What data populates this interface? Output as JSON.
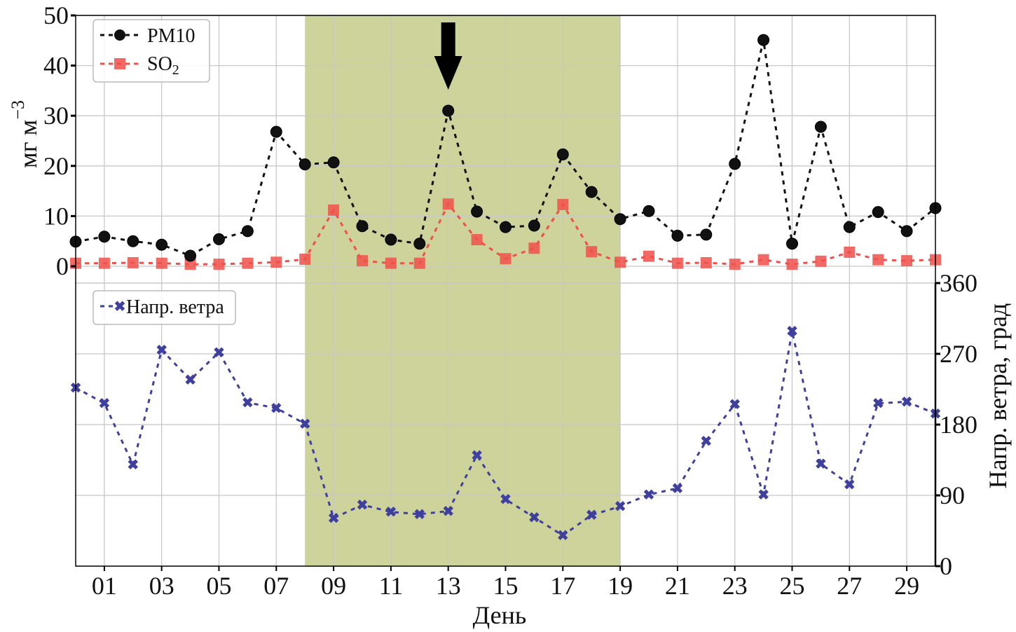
{
  "chart_data": {
    "type": "line",
    "xlabel": "День",
    "x": [
      0,
      1,
      2,
      3,
      4,
      5,
      6,
      7,
      8,
      9,
      10,
      11,
      12,
      13,
      14,
      15,
      16,
      17,
      18,
      19,
      20,
      21,
      22,
      23,
      24,
      25,
      26,
      27,
      28,
      29,
      30
    ],
    "xlim": [
      0,
      30
    ],
    "xticks": [
      "01",
      "03",
      "05",
      "07",
      "09",
      "11",
      "13",
      "15",
      "17",
      "19",
      "21",
      "23",
      "25",
      "27",
      "29"
    ],
    "xtick_values": [
      1,
      3,
      5,
      7,
      9,
      11,
      13,
      15,
      17,
      19,
      21,
      23,
      25,
      27,
      29
    ],
    "grid": true,
    "highlight_span": {
      "from": 8,
      "to": 19,
      "color": "#cdd39a"
    },
    "arrow_at": {
      "x": 13,
      "color": "#000000"
    },
    "top_panel": {
      "ylabel": "мг м",
      "ylabel_sup": "−3",
      "ylim": [
        0,
        50
      ],
      "yticks": [
        "0",
        "10",
        "20",
        "30",
        "40",
        "50"
      ],
      "ytick_values": [
        0,
        10,
        20,
        30,
        40,
        50
      ],
      "legend_placement": "upper-left",
      "series": [
        {
          "name": "PM10",
          "color": "#111111",
          "marker": "circle",
          "linestyle": "dotted",
          "values": [
            4.9,
            5.9,
            5.0,
            4.3,
            2.1,
            5.4,
            7.0,
            26.8,
            20.3,
            20.7,
            8.0,
            5.3,
            4.5,
            31.0,
            10.9,
            7.8,
            8.1,
            22.3,
            14.8,
            9.4,
            11.0,
            6.1,
            6.3,
            20.4,
            45.1,
            4.5,
            27.8,
            7.8,
            10.8,
            7.0,
            11.6
          ]
        },
        {
          "name": "SO",
          "name_sub": "2",
          "color": "#f0504a",
          "marker": "square",
          "linestyle": "dotted",
          "values": [
            0.6,
            0.6,
            0.7,
            0.6,
            0.4,
            0.4,
            0.6,
            0.8,
            1.4,
            11.2,
            1.1,
            0.6,
            0.6,
            12.4,
            5.3,
            1.5,
            3.6,
            12.3,
            2.9,
            0.8,
            2.0,
            0.6,
            0.7,
            0.4,
            1.3,
            0.4,
            1.0,
            2.8,
            1.3,
            1.1,
            1.3
          ]
        }
      ]
    },
    "bottom_panel": {
      "ylabel": "Напр. ветра, град",
      "yaxis_side": "right",
      "ylim": [
        0,
        360
      ],
      "yticks": [
        "0",
        "90",
        "180",
        "270",
        "360"
      ],
      "ytick_values": [
        0,
        90,
        180,
        270,
        360
      ],
      "legend_placement": "upper-left",
      "series": [
        {
          "name": "Напр. ветра",
          "color": "#3f3f9e",
          "marker": "x-filled",
          "linestyle": "dotted",
          "values": [
            227,
            207,
            129,
            275,
            237,
            272,
            208,
            201,
            181,
            61,
            78,
            69,
            66,
            70,
            141,
            85,
            62,
            39,
            65,
            76,
            91,
            99,
            159,
            206,
            91,
            299,
            130,
            104,
            207,
            209,
            194
          ]
        }
      ]
    }
  }
}
